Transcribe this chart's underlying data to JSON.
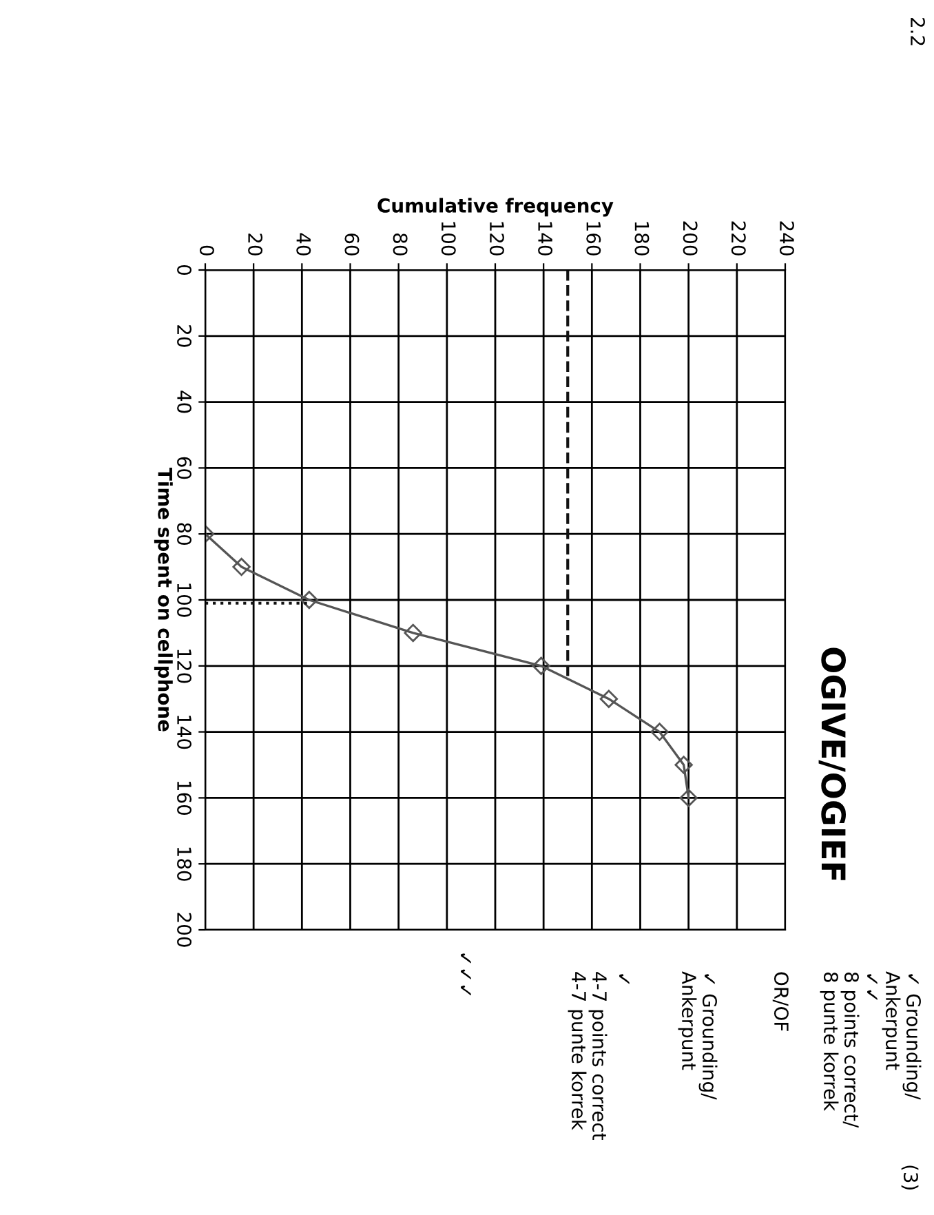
{
  "chart_data": {
    "type": "line",
    "title": "OGIVE/OGIEF",
    "xlabel": "Cumulative frequency",
    "ylabel": "Time spent on cellphone",
    "x": [
      0,
      15,
      43,
      86,
      139,
      167,
      188,
      198,
      200
    ],
    "series": [
      {
        "color": "#555555",
        "values": [
          80,
          90,
          100,
          110,
          120,
          130,
          140,
          150,
          160
        ]
      },
      {
        "color": "#111111",
        "x": [
          150,
          150
        ],
        "values": [
          0,
          124
        ],
        "marker": "none",
        "line_style": "dashed"
      },
      {
        "color": "#111111",
        "x": [
          0,
          43
        ],
        "values": [
          101,
          101
        ],
        "marker": "none",
        "line_style": "dotted"
      }
    ],
    "xlim": [
      0,
      240
    ],
    "xticks": [
      0,
      20,
      40,
      60,
      80,
      100,
      120,
      140,
      160,
      180,
      200,
      220,
      240
    ],
    "ylim": [
      200,
      0
    ],
    "yticks": [
      0,
      20,
      40,
      60,
      80,
      100,
      120,
      140,
      160,
      180,
      200
    ],
    "grid": true,
    "marker": "diamond",
    "line_style": "solid",
    "annotations": [
      "2.2",
      "(3)",
      "✓ Grounding/",
      "Ankerpunt",
      "✓✓",
      "8 points correct/",
      "8 punte korrek",
      "OR/OF",
      "✓ Grounding/",
      "Ankerpunt",
      "✓",
      "4-7 points correct",
      "4-7 punte korrek",
      "✓✓✓"
    ]
  }
}
